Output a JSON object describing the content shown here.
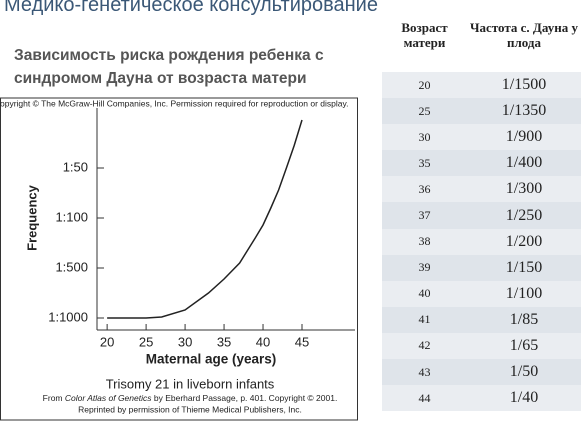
{
  "header": {
    "title": "Медико-генетическое консультирование",
    "subtitle": "Зависимость риска рождения ребенка с синдромом Дауна от возраста матери"
  },
  "chart_data": {
    "type": "line",
    "notice": "opyright © The McGraw-Hill Companies, Inc. Permission required for reproduction or display.",
    "caption": "Trisomy 21 in liveborn infants",
    "source": [
      "From ",
      "Color Atlas of Genetics",
      " by Eberhard Passage, p. 401. Copyright © 2001."
    ],
    "source2": "Reprinted by permission of Thieme Medical Publishers, Inc.",
    "x_label": "Maternal age (years)",
    "y_label": "Frequency",
    "x": [
      20,
      25,
      27,
      30,
      33,
      35,
      37,
      39,
      40,
      41,
      42,
      43,
      44,
      45
    ],
    "series": [
      {
        "color": "#222222",
        "values": [
          0,
          0,
          0.02,
          0.16,
          0.5,
          0.78,
          1.1,
          1.6,
          1.86,
          2.2,
          2.56,
          3.0,
          3.45,
          3.96
        ]
      }
    ],
    "xlim": [
      18.7,
      51.8
    ],
    "xticks": [
      20,
      25,
      30,
      35,
      40,
      45
    ],
    "ylim": [
      -0.24,
      4.4
    ],
    "yticks": [
      {
        "value": 0,
        "label": "1:1000"
      },
      {
        "value": 1,
        "label": "1:500"
      },
      {
        "value": 2,
        "label": "1:100"
      },
      {
        "value": 3,
        "label": "1:50"
      }
    ]
  },
  "table": {
    "header": [
      "Возраст матери",
      "Частота с. Дауна у плода"
    ],
    "rows": [
      [
        20,
        "1/1500"
      ],
      [
        25,
        "1/1350"
      ],
      [
        30,
        "1/900"
      ],
      [
        35,
        "1/400"
      ],
      [
        36,
        "1/300"
      ],
      [
        37,
        "1/250"
      ],
      [
        38,
        "1/200"
      ],
      [
        39,
        "1/150"
      ],
      [
        40,
        "1/100"
      ],
      [
        41,
        "1/85"
      ],
      [
        42,
        "1/65"
      ],
      [
        43,
        "1/50"
      ],
      [
        44,
        "1/40"
      ]
    ]
  }
}
